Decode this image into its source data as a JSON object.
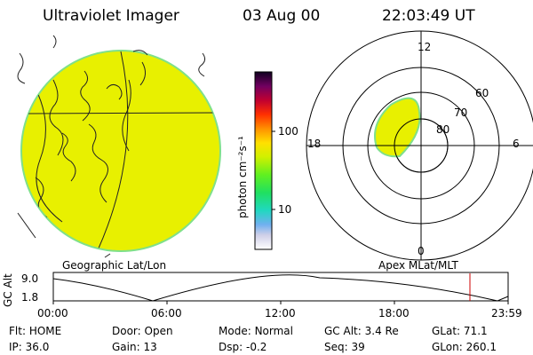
{
  "header": {
    "title": "Ultraviolet Imager",
    "date": "03 Aug 00",
    "time": "22:03:49 UT"
  },
  "colorbar": {
    "unit_label": "photon cm⁻²s⁻¹",
    "ticks": [
      "100",
      "10"
    ]
  },
  "polar_plot": {
    "mlt_labels": [
      "12",
      "18",
      "6",
      "0"
    ],
    "lat_labels": [
      "60",
      "70",
      "80"
    ]
  },
  "panel_labels": {
    "left": "Geographic Lat/Lon",
    "right": "Apex MLat/MLT"
  },
  "altitude_plot": {
    "ylabel": "GC Alt",
    "y_ticks": [
      "9.0",
      "1.8"
    ],
    "x_ticks": [
      "00:00",
      "06:00",
      "12:00",
      "18:00",
      "23:59"
    ],
    "current_marker_color": "#cc0000"
  },
  "info": {
    "row1": [
      {
        "label": "Flt:",
        "value": "HOME"
      },
      {
        "label": "Door:",
        "value": "Open"
      },
      {
        "label": "Mode:",
        "value": "Normal"
      },
      {
        "label": "GC Alt:",
        "value": "3.4 Re"
      },
      {
        "label": "GLat:",
        "value": "71.1"
      }
    ],
    "row2": [
      {
        "label": "IP:",
        "value": "36.0"
      },
      {
        "label": "Gain:",
        "value": "13"
      },
      {
        "label": "Dsp:",
        "value": "-0.2"
      },
      {
        "label": "Seq:",
        "value": "39"
      },
      {
        "label": "GLon:",
        "value": "260.1"
      }
    ]
  },
  "colors": {
    "earth_fill": "#e8f000",
    "limb_outline": "#7fe08a"
  }
}
